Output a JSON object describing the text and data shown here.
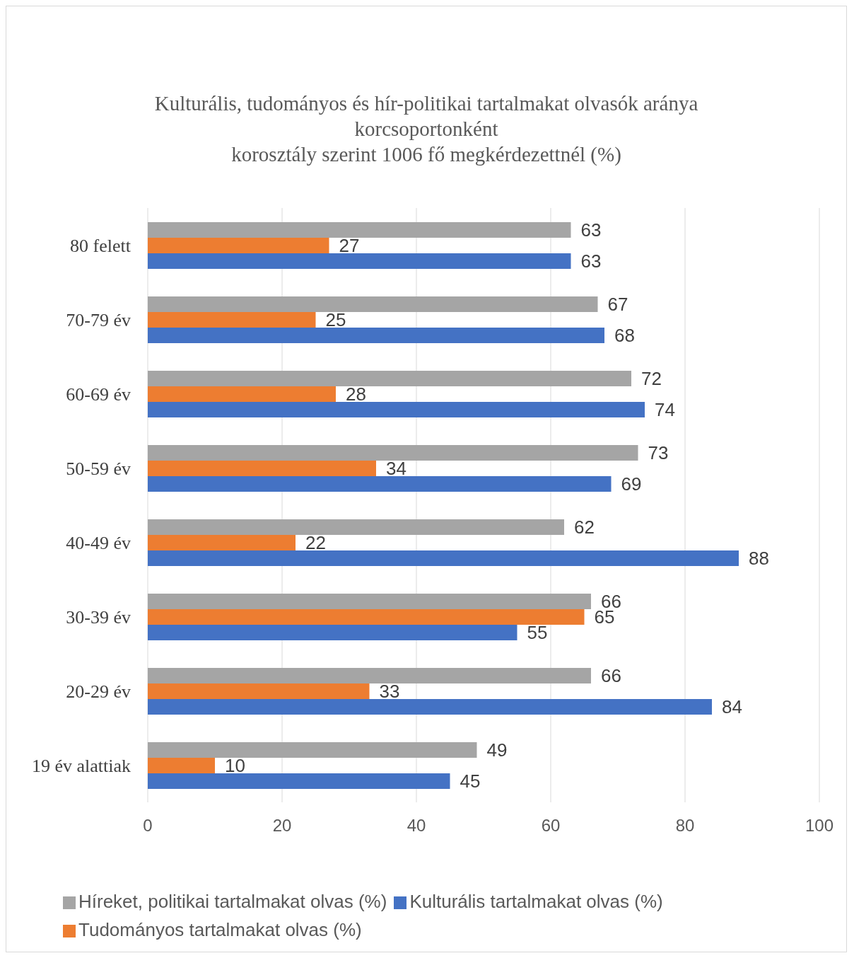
{
  "chart_data": {
    "type": "bar",
    "orientation": "horizontal",
    "title": "Kulturális, tudományos és hír-politikai tartalmakat olvasók aránya korcsoportonként\nkorosztály szerint 1006 fő megkérdezettnél (%)",
    "categories": [
      "80 felett",
      "70-79 év",
      "60-69 év",
      "50-59 év",
      "40-49 év",
      "30-39 év",
      "20-29 év",
      "19 év alattiak"
    ],
    "series": [
      {
        "name": "Híreket, politikai tartalmakat olvas (%)",
        "color": "#a5a5a5",
        "values": [
          63,
          67,
          72,
          73,
          62,
          66,
          66,
          49
        ]
      },
      {
        "name": "Tudományos tartalmakat olvas (%)",
        "color": "#ed7d31",
        "values": [
          27,
          25,
          28,
          34,
          22,
          65,
          33,
          10
        ]
      },
      {
        "name": "Kulturális tartalmakat olvas (%)",
        "color": "#4472c4",
        "values": [
          63,
          68,
          74,
          69,
          88,
          55,
          84,
          45
        ]
      }
    ],
    "xlim": [
      0,
      100
    ],
    "xticks": [
      0,
      20,
      40,
      60,
      80,
      100
    ],
    "grid": "x",
    "legend": "bottom",
    "data_labels": true
  }
}
